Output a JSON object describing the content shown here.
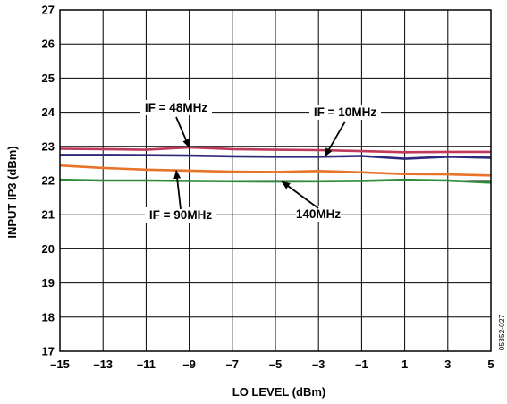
{
  "chart_data": {
    "type": "line",
    "title": "",
    "xlabel": "LO LEVEL (dBm)",
    "ylabel": "INPUT IP3 (dBm)",
    "xlim": [
      -15,
      5
    ],
    "ylim": [
      17,
      27
    ],
    "grid": true,
    "x_ticks": [
      "–15",
      "–13",
      "–11",
      "–9",
      "–7",
      "–5",
      "–3",
      "–1",
      "1",
      "3",
      "5"
    ],
    "y_ticks": [
      "17",
      "18",
      "19",
      "20",
      "21",
      "22",
      "23",
      "24",
      "25",
      "26",
      "27"
    ],
    "x": [
      -15,
      -13,
      -11,
      -9,
      -7,
      -5,
      -3,
      -1,
      1,
      3,
      5
    ],
    "series": [
      {
        "name": "IF = 48MHz",
        "color": "#c0385a",
        "values": [
          22.93,
          22.92,
          22.9,
          22.97,
          22.92,
          22.9,
          22.89,
          22.86,
          22.83,
          22.84,
          22.84
        ]
      },
      {
        "name": "IF = 10MHz",
        "color": "#2e2a7a",
        "values": [
          22.75,
          22.75,
          22.74,
          22.73,
          22.71,
          22.7,
          22.7,
          22.72,
          22.64,
          22.7,
          22.67
        ]
      },
      {
        "name": "IF = 90MHz",
        "color": "#e8742a",
        "values": [
          22.44,
          22.37,
          22.32,
          22.29,
          22.26,
          22.25,
          22.28,
          22.24,
          22.19,
          22.18,
          22.15
        ]
      },
      {
        "name": "140MHz",
        "color": "#2e8b3a",
        "values": [
          22.02,
          22.0,
          22.0,
          21.99,
          21.98,
          21.97,
          21.98,
          21.99,
          22.02,
          22.0,
          21.94
        ]
      }
    ],
    "annotations": [
      "IF = 48MHz",
      "IF = 10MHz",
      "IF = 90MHz",
      "140MHz"
    ],
    "figure_code": "05352-027"
  }
}
